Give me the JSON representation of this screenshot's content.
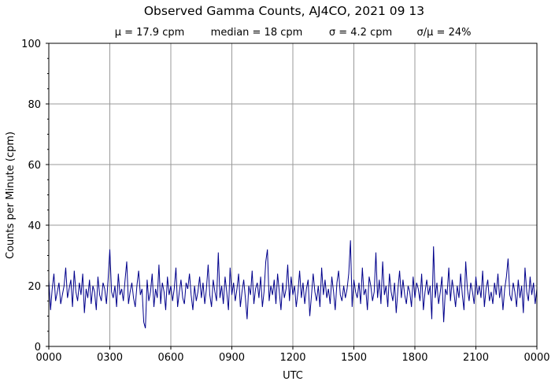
{
  "chart_data": {
    "type": "line",
    "title": "Observed Gamma Counts, AJ4CO, 2021 09 13",
    "subtitle": [
      "μ = 17.9 cpm",
      "median = 18 cpm",
      "σ = 4.2 cpm",
      "σ/μ = 24%"
    ],
    "xlabel": "UTC",
    "ylabel": "Counts per Minute (cpm)",
    "xlim_minutes": [
      0,
      1440
    ],
    "ylim": [
      0,
      100
    ],
    "xticks": [
      "0000",
      "0300",
      "0600",
      "0900",
      "1200",
      "1500",
      "1800",
      "2100",
      "0000"
    ],
    "yticks": [
      0,
      20,
      40,
      60,
      80,
      100
    ],
    "y_minor_step": 5,
    "grid": true,
    "line_color": "#00008b",
    "x_step_minutes": 5,
    "values": [
      22,
      12,
      19,
      24,
      15,
      18,
      21,
      14,
      17,
      20,
      26,
      16,
      19,
      22,
      13,
      25,
      18,
      15,
      21,
      17,
      24,
      11,
      19,
      16,
      22,
      14,
      20,
      18,
      12,
      23,
      17,
      15,
      21,
      19,
      14,
      22,
      32,
      18,
      16,
      20,
      13,
      24,
      17,
      19,
      15,
      22,
      28,
      14,
      18,
      21,
      16,
      13,
      20,
      25,
      17,
      19,
      8,
      6,
      22,
      15,
      18,
      24,
      13,
      19,
      16,
      27,
      14,
      21,
      18,
      12,
      23,
      17,
      20,
      15,
      19,
      26,
      13,
      18,
      22,
      16,
      14,
      21,
      19,
      24,
      17,
      12,
      20,
      15,
      18,
      23,
      16,
      21,
      14,
      19,
      27,
      17,
      13,
      22,
      18,
      15,
      31,
      16,
      20,
      14,
      23,
      18,
      12,
      26,
      17,
      21,
      15,
      19,
      24,
      13,
      18,
      22,
      16,
      9,
      20,
      17,
      25,
      14,
      19,
      21,
      16,
      23,
      13,
      18,
      28,
      32,
      15,
      20,
      17,
      22,
      14,
      24,
      18,
      12,
      21,
      16,
      19,
      27,
      15,
      23,
      17,
      20,
      13,
      18,
      25,
      16,
      21,
      14,
      19,
      22,
      10,
      17,
      24,
      18,
      15,
      20,
      13,
      26,
      17,
      22,
      16,
      19,
      14,
      23,
      18,
      12,
      21,
      25,
      17,
      15,
      20,
      16,
      19,
      24,
      35,
      13,
      22,
      18,
      16,
      21,
      14,
      26,
      17,
      19,
      12,
      23,
      20,
      15,
      18,
      31,
      16,
      22,
      14,
      28,
      17,
      20,
      13,
      24,
      18,
      15,
      21,
      11,
      19,
      25,
      16,
      22,
      17,
      14,
      20,
      18,
      13,
      23,
      16,
      21,
      19,
      15,
      24,
      12,
      18,
      22,
      17,
      20,
      9,
      33,
      16,
      21,
      14,
      18,
      23,
      8,
      19,
      17,
      26,
      15,
      22,
      18,
      13,
      20,
      16,
      24,
      17,
      12,
      28,
      19,
      15,
      21,
      18,
      14,
      23,
      17,
      20,
      16,
      25,
      13,
      19,
      22,
      15,
      18,
      14,
      21,
      17,
      24,
      16,
      20,
      12,
      19,
      23,
      29,
      17,
      15,
      21,
      18,
      13,
      22,
      16,
      20,
      11,
      26,
      18,
      15,
      23,
      17,
      21,
      14,
      19
    ]
  }
}
